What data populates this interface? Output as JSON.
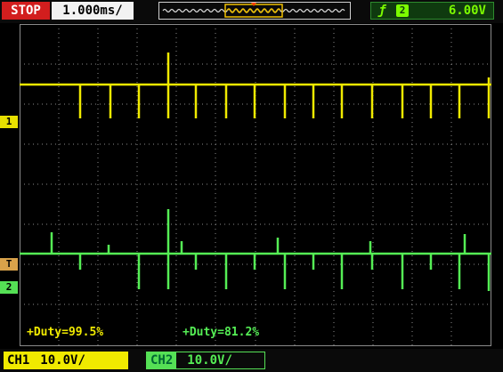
{
  "top_bar": {
    "run_state": "STOP",
    "timebase": "1.000ms/",
    "trigger": {
      "edge_icon": "rising-edge-icon",
      "source": "2",
      "level": "6.00V"
    }
  },
  "markers": {
    "ch1": "1",
    "trigger": "T",
    "ch2": "2",
    "trigger_position": "T"
  },
  "measurements": {
    "ch1_duty": "+Duty=99.5%",
    "ch2_duty": "+Duty=81.2%"
  },
  "bottom_bar": {
    "ch1": {
      "label": "CH1",
      "scale": "10.0V/"
    },
    "ch2": {
      "label": "CH2",
      "scale": "10.0V/"
    }
  },
  "colors": {
    "ch1": "#f0ea00",
    "ch2": "#55ee55",
    "stop": "#d21e1e",
    "grid": "#8a8a8a"
  }
}
